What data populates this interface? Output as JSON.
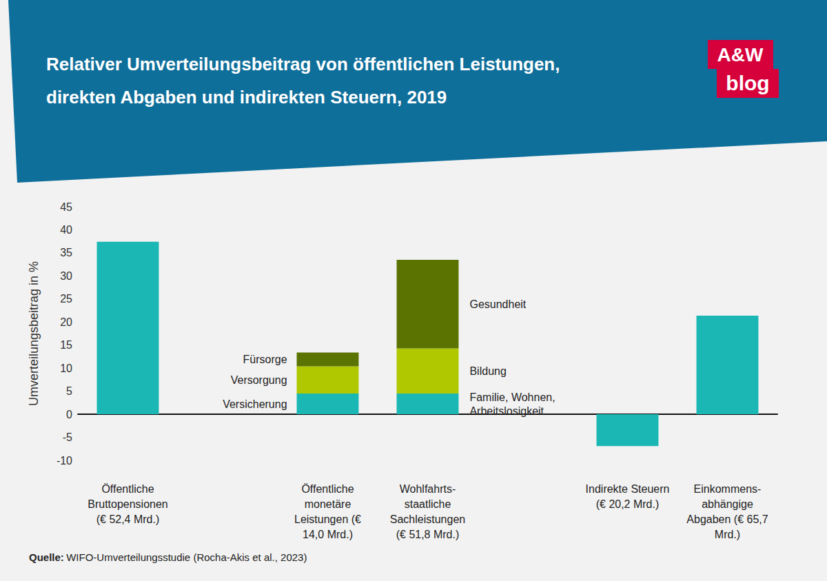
{
  "chart_data": {
    "type": "bar",
    "title": "Relativer Umverteilungsbeitrag von öffentlichen Leistungen,\ndirekten Abgaben und indirekten Steuern, 2019",
    "ylabel": "Umverteilungsbeitrag in %",
    "categories": [
      "Öffentliche\nBruttopensionen\n(€ 52,4 Mrd.)",
      null,
      "Öffentliche\nmonetäre\nLeistungen (€\n14,0 Mrd.)",
      "Wohlfahrts-\nstaatliche\nSachleistungen\n(€ 51,8 Mrd.)",
      null,
      "Indirekte Steuern\n(€ 20,2 Mrd.)",
      "Einkommens-\nabhängige\nAbgaben (€ 65,7\nMrd.)"
    ],
    "series": [
      {
        "color": "#1ab7b5",
        "values": [
          37.4,
          null,
          null,
          null,
          null,
          -6.9,
          21.4
        ]
      },
      {
        "name": "Versicherung",
        "color": "#1ab7b5",
        "values": [
          null,
          null,
          4.5,
          null,
          null,
          null,
          null
        ]
      },
      {
        "name": "Familie, Wohnen, Arbeitslosigkeit",
        "color": "#1ab7b5",
        "values": [
          null,
          null,
          null,
          4.5,
          null,
          null,
          null
        ]
      },
      {
        "name": "Versorgung",
        "color": "#afc800",
        "values": [
          null,
          null,
          5.9,
          null,
          null,
          null,
          null
        ]
      },
      {
        "name": "Bildung",
        "color": "#afc800",
        "values": [
          null,
          null,
          null,
          9.8,
          null,
          null,
          null
        ]
      },
      {
        "name": "Fürsorge",
        "color": "#5b7300",
        "values": [
          null,
          null,
          3.0,
          null,
          null,
          null,
          null
        ]
      },
      {
        "name": "Gesundheit",
        "color": "#5b7300",
        "values": [
          null,
          null,
          null,
          19.2,
          null,
          null,
          null
        ]
      }
    ],
    "stacked": true,
    "grid": false,
    "ylim": [
      -10,
      45
    ],
    "yticks": [
      -10,
      -5,
      0,
      5,
      10,
      15,
      20,
      25,
      30,
      35,
      40,
      45
    ],
    "source": {
      "label": "Quelle:",
      "text": "WIFO-Umverteilungsstudie (Rocha-Akis et al., 2023)"
    },
    "logo": [
      "A&W",
      "blog"
    ]
  }
}
